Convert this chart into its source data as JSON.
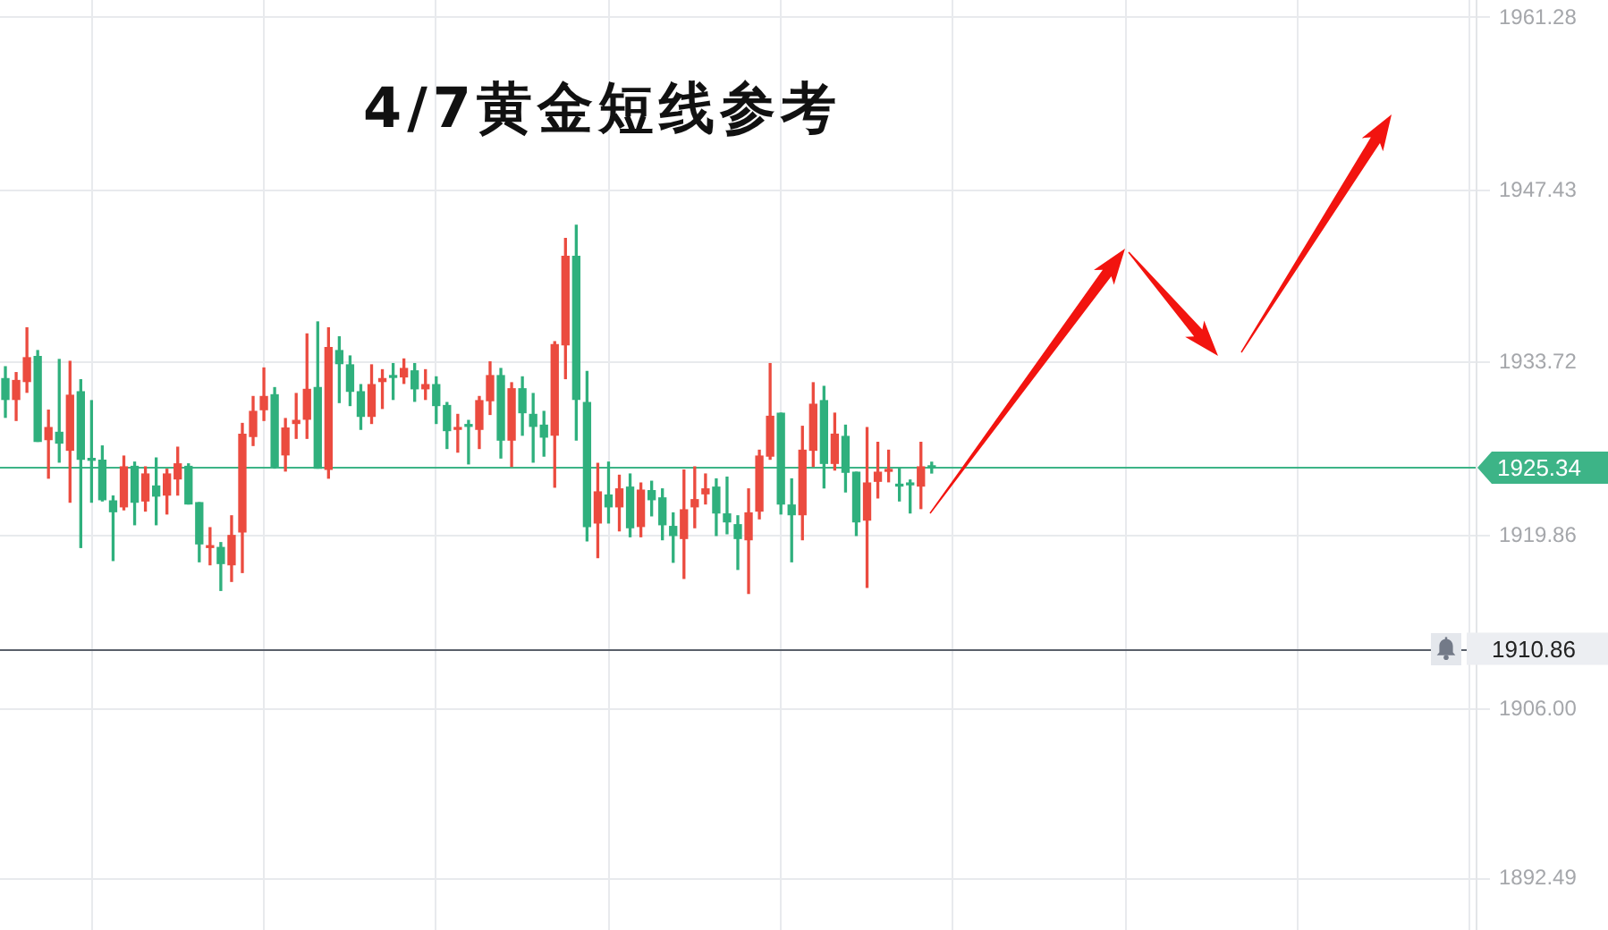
{
  "chart_data": {
    "type": "candlestick",
    "title": "4/7黄金短线参考",
    "categories": [
      null,
      null,
      null,
      null,
      null,
      null,
      null,
      null,
      null,
      null,
      null,
      null,
      null,
      null,
      null,
      null,
      null,
      null,
      null,
      null,
      null,
      null,
      null,
      null,
      null,
      null,
      null,
      null,
      null,
      null,
      null,
      null,
      null,
      null,
      null,
      null,
      null,
      null,
      null,
      null,
      null,
      null,
      null,
      null,
      null,
      null,
      null,
      null,
      null,
      null,
      null,
      null,
      null,
      null,
      null,
      null,
      null,
      null,
      null,
      null,
      null,
      null,
      null,
      null,
      null,
      null,
      null,
      null,
      null,
      null,
      null,
      null,
      null,
      null,
      null,
      null,
      null,
      null,
      null,
      null,
      null,
      null,
      null,
      null,
      null,
      null,
      null,
      null,
      null,
      null,
      null,
      null,
      null,
      null,
      null,
      null,
      null,
      null,
      null,
      null,
      null,
      null,
      null,
      null,
      null,
      null,
      null,
      null,
      null,
      null,
      null,
      null,
      null,
      null,
      null,
      null,
      null,
      null,
      null,
      null,
      null,
      null,
      null,
      null,
      null,
      null,
      null,
      null,
      null,
      null,
      null,
      null,
      null,
      null,
      null,
      null,
      null
    ],
    "ohlc": [
      [
        1932.45,
        1933.4,
        1929.36,
        1930.79
      ],
      [
        1930.79,
        1932.93,
        1929.11,
        1932.3
      ],
      [
        1932.22,
        1936.51,
        1931.36,
        1934.12
      ],
      [
        1934.22,
        1934.69,
        1927.44,
        1927.44
      ],
      [
        1927.58,
        1929.93,
        1924.5,
        1928.54
      ],
      [
        1928.16,
        1933.98,
        1925.78,
        1927.3
      ],
      [
        1926.73,
        1933.83,
        1922.58,
        1931.12
      ],
      [
        1931.4,
        1932.36,
        1918.96,
        1926.01
      ],
      [
        1926.0,
        1930.69,
        1922.58,
        1925.93
      ],
      [
        1925.93,
        1927.07,
        1922.68,
        1922.78
      ],
      [
        1922.68,
        1923.07,
        1917.92,
        1921.82
      ],
      [
        1922.21,
        1926.26,
        1921.97,
        1925.4
      ],
      [
        1925.44,
        1925.78,
        1920.78,
        1922.58
      ],
      [
        1922.68,
        1925.4,
        1921.87,
        1924.83
      ],
      [
        1923.87,
        1926.11,
        1920.78,
        1923.07
      ],
      [
        1923.15,
        1925.21,
        1921.64,
        1924.83
      ],
      [
        1924.44,
        1926.97,
        1923.15,
        1925.64
      ],
      [
        1925.44,
        1925.64,
        1922.44,
        1922.44
      ],
      [
        1922.54,
        1922.54,
        1917.82,
        1919.25
      ],
      [
        1918.96,
        1920.54,
        1917.58,
        1919.06
      ],
      [
        1918.96,
        1919.35,
        1915.53,
        1917.68
      ],
      [
        1917.58,
        1921.49,
        1916.25,
        1919.92
      ],
      [
        1920.21,
        1928.87,
        1916.96,
        1928.01
      ],
      [
        1927.83,
        1931.02,
        1927.11,
        1929.83
      ],
      [
        1929.97,
        1933.3,
        1929.11,
        1931.02
      ],
      [
        1931.16,
        1931.73,
        1925.3,
        1925.44
      ],
      [
        1926.36,
        1929.26,
        1925.07,
        1928.5
      ],
      [
        1928.87,
        1931.26,
        1927.68,
        1929.11
      ],
      [
        1929.21,
        1936.02,
        1927.68,
        1931.59
      ],
      [
        1931.73,
        1936.98,
        1925.3,
        1925.3
      ],
      [
        1925.21,
        1936.51,
        1924.5,
        1934.93
      ],
      [
        1934.69,
        1935.79,
        1930.54,
        1933.65
      ],
      [
        1933.55,
        1934.26,
        1930.3,
        1931.44
      ],
      [
        1931.4,
        1931.97,
        1928.4,
        1929.44
      ],
      [
        1929.44,
        1933.55,
        1928.87,
        1931.97
      ],
      [
        1932.22,
        1933.16,
        1930.07,
        1932.45
      ],
      [
        1932.65,
        1933.65,
        1930.79,
        1932.55
      ],
      [
        1932.59,
        1934.02,
        1932.07,
        1933.26
      ],
      [
        1933.07,
        1933.65,
        1930.64,
        1931.64
      ],
      [
        1931.64,
        1933.16,
        1930.79,
        1931.97
      ],
      [
        1931.97,
        1932.59,
        1928.87,
        1930.3
      ],
      [
        1930.3,
        1930.54,
        1926.87,
        1928.3
      ],
      [
        1928.4,
        1929.59,
        1926.58,
        1928.5
      ],
      [
        1928.74,
        1929.11,
        1925.64,
        1928.64
      ],
      [
        1928.4,
        1931.02,
        1926.87,
        1930.69
      ],
      [
        1930.69,
        1933.79,
        1929.59,
        1932.69
      ],
      [
        1932.69,
        1933.26,
        1926.11,
        1927.54
      ],
      [
        1927.54,
        1932.12,
        1925.44,
        1931.64
      ],
      [
        1931.64,
        1932.59,
        1927.93,
        1929.73
      ],
      [
        1929.59,
        1931.26,
        1925.78,
        1928.64
      ],
      [
        1928.73,
        1929.83,
        1926.26,
        1927.78
      ],
      [
        1927.93,
        1935.4,
        1923.78,
        1935.16
      ],
      [
        1935.16,
        1943.65,
        1932.45,
        1942.22
      ],
      [
        1942.22,
        1944.7,
        1927.54,
        1930.79
      ],
      [
        1930.54,
        1933.02,
        1919.49,
        1920.64
      ],
      [
        1920.92,
        1925.68,
        1918.15,
        1923.4
      ],
      [
        1923.15,
        1925.78,
        1920.92,
        1922.21
      ],
      [
        1922.21,
        1924.73,
        1920.29,
        1923.64
      ],
      [
        1923.78,
        1924.83,
        1919.82,
        1920.54
      ],
      [
        1920.64,
        1924.11,
        1919.82,
        1923.54
      ],
      [
        1923.5,
        1924.25,
        1921.49,
        1922.78
      ],
      [
        1922.92,
        1923.64,
        1919.58,
        1920.78
      ],
      [
        1920.64,
        1921.72,
        1917.78,
        1919.92
      ],
      [
        1919.68,
        1925.15,
        1916.49,
        1921.97
      ],
      [
        1922.21,
        1925.4,
        1920.54,
        1922.78
      ],
      [
        1923.25,
        1924.83,
        1922.44,
        1923.64
      ],
      [
        1923.78,
        1924.44,
        1919.92,
        1921.72
      ],
      [
        1921.64,
        1924.58,
        1920.06,
        1921.01
      ],
      [
        1920.78,
        1921.49,
        1917.21,
        1919.68
      ],
      [
        1919.58,
        1923.64,
        1915.29,
        1921.72
      ],
      [
        1921.87,
        1926.73,
        1921.25,
        1926.26
      ],
      [
        1926.26,
        1933.65,
        1926.01,
        1929.44
      ],
      [
        1929.69,
        1929.69,
        1921.64,
        1922.44
      ],
      [
        1922.35,
        1924.44,
        1917.82,
        1921.58
      ],
      [
        1921.58,
        1928.64,
        1919.58,
        1926.73
      ],
      [
        1926.73,
        1932.12,
        1925.44,
        1930.4
      ],
      [
        1930.69,
        1931.83,
        1923.72,
        1925.68
      ],
      [
        1925.68,
        1929.69,
        1925.15,
        1928.01
      ],
      [
        1927.83,
        1928.73,
        1923.4,
        1924.97
      ],
      [
        1924.97,
        1924.97,
        1919.92,
        1921.01
      ],
      [
        1921.15,
        1928.54,
        1915.78,
        1924.11
      ],
      [
        1924.25,
        1927.36,
        1922.92,
        1924.97
      ],
      [
        1925.05,
        1926.73,
        1924.21,
        1925.15
      ],
      [
        1923.97,
        1925.3,
        1922.68,
        1923.87
      ],
      [
        1924.07,
        1924.35,
        1921.72,
        1923.97
      ],
      [
        1923.87,
        1927.36,
        1922.07,
        1925.4
      ],
      [
        1925.44,
        1925.77,
        1924.91,
        1925.34
      ],
      null,
      null,
      null,
      null,
      null,
      null,
      null,
      null,
      null,
      null,
      null,
      null,
      null,
      null,
      null,
      null,
      null,
      null,
      null,
      null,
      null,
      null,
      null,
      null,
      null,
      null,
      null,
      null,
      null,
      null,
      null,
      null,
      null,
      null,
      null,
      null,
      null,
      null,
      null,
      null,
      null,
      null,
      null,
      null,
      null,
      null,
      null,
      null,
      null,
      null
    ],
    "colors": [
      "#2fb07d",
      "#eb4b3f",
      "#eb4b3f",
      "#2fb07d",
      "#eb4b3f",
      "#2fb07d",
      "#eb4b3f",
      "#2fb07d",
      "#2fb07d",
      "#2fb07d",
      "#2fb07d",
      "#eb4b3f",
      "#2fb07d",
      "#eb4b3f",
      "#2fb07d",
      "#eb4b3f",
      "#eb4b3f",
      "#2fb07d",
      "#2fb07d",
      "#eb4b3f",
      "#2fb07d",
      "#eb4b3f",
      "#eb4b3f",
      "#eb4b3f",
      "#eb4b3f",
      "#2fb07d",
      "#eb4b3f",
      "#eb4b3f",
      "#eb4b3f",
      "#2fb07d",
      "#eb4b3f",
      "#2fb07d",
      "#2fb07d",
      "#2fb07d",
      "#eb4b3f",
      "#eb4b3f",
      "#2fb07d",
      "#eb4b3f",
      "#2fb07d",
      "#eb4b3f",
      "#2fb07d",
      "#2fb07d",
      "#eb4b3f",
      "#2fb07d",
      "#eb4b3f",
      "#eb4b3f",
      "#2fb07d",
      "#eb4b3f",
      "#2fb07d",
      "#2fb07d",
      "#2fb07d",
      "#eb4b3f",
      "#eb4b3f",
      "#2fb07d",
      "#2fb07d",
      "#eb4b3f",
      "#2fb07d",
      "#eb4b3f",
      "#2fb07d",
      "#eb4b3f",
      "#2fb07d",
      "#2fb07d",
      "#2fb07d",
      "#eb4b3f",
      "#eb4b3f",
      "#eb4b3f",
      "#2fb07d",
      "#2fb07d",
      "#2fb07d",
      "#eb4b3f",
      "#eb4b3f",
      "#eb4b3f",
      "#2fb07d",
      "#2fb07d",
      "#eb4b3f",
      "#eb4b3f",
      "#2fb07d",
      "#eb4b3f",
      "#2fb07d",
      "#2fb07d",
      "#eb4b3f",
      "#eb4b3f",
      "#eb4b3f",
      "#2fb07d",
      "#2fb07d",
      "#eb4b3f",
      "#2fb07d",
      null,
      null,
      null,
      null,
      null,
      null,
      null,
      null,
      null,
      null,
      null,
      null,
      null,
      null,
      null,
      null,
      null,
      null,
      null,
      null,
      null,
      null,
      null,
      null,
      null,
      null,
      null,
      null,
      null,
      null,
      null,
      null,
      null,
      null,
      null,
      null,
      null,
      null,
      null,
      null,
      null,
      null,
      null,
      null,
      null,
      null,
      null,
      null,
      null,
      null
    ],
    "ylim": [
      1888.4,
      1962.7
    ],
    "yticks": [
      1892.49,
      {
        "value": 1906,
        "label": "1906.00"
      },
      1919.86,
      1933.72,
      1947.43,
      1961.28
    ],
    "grid": true,
    "tick_labels": "y",
    "ref_lines": [
      {
        "axis": "y",
        "value": 1925.34,
        "label": "1925.34",
        "color": "#3db487"
      },
      {
        "axis": "y",
        "value": 1910.86,
        "label": "1910.86",
        "color": "#5a606a"
      }
    ]
  }
}
